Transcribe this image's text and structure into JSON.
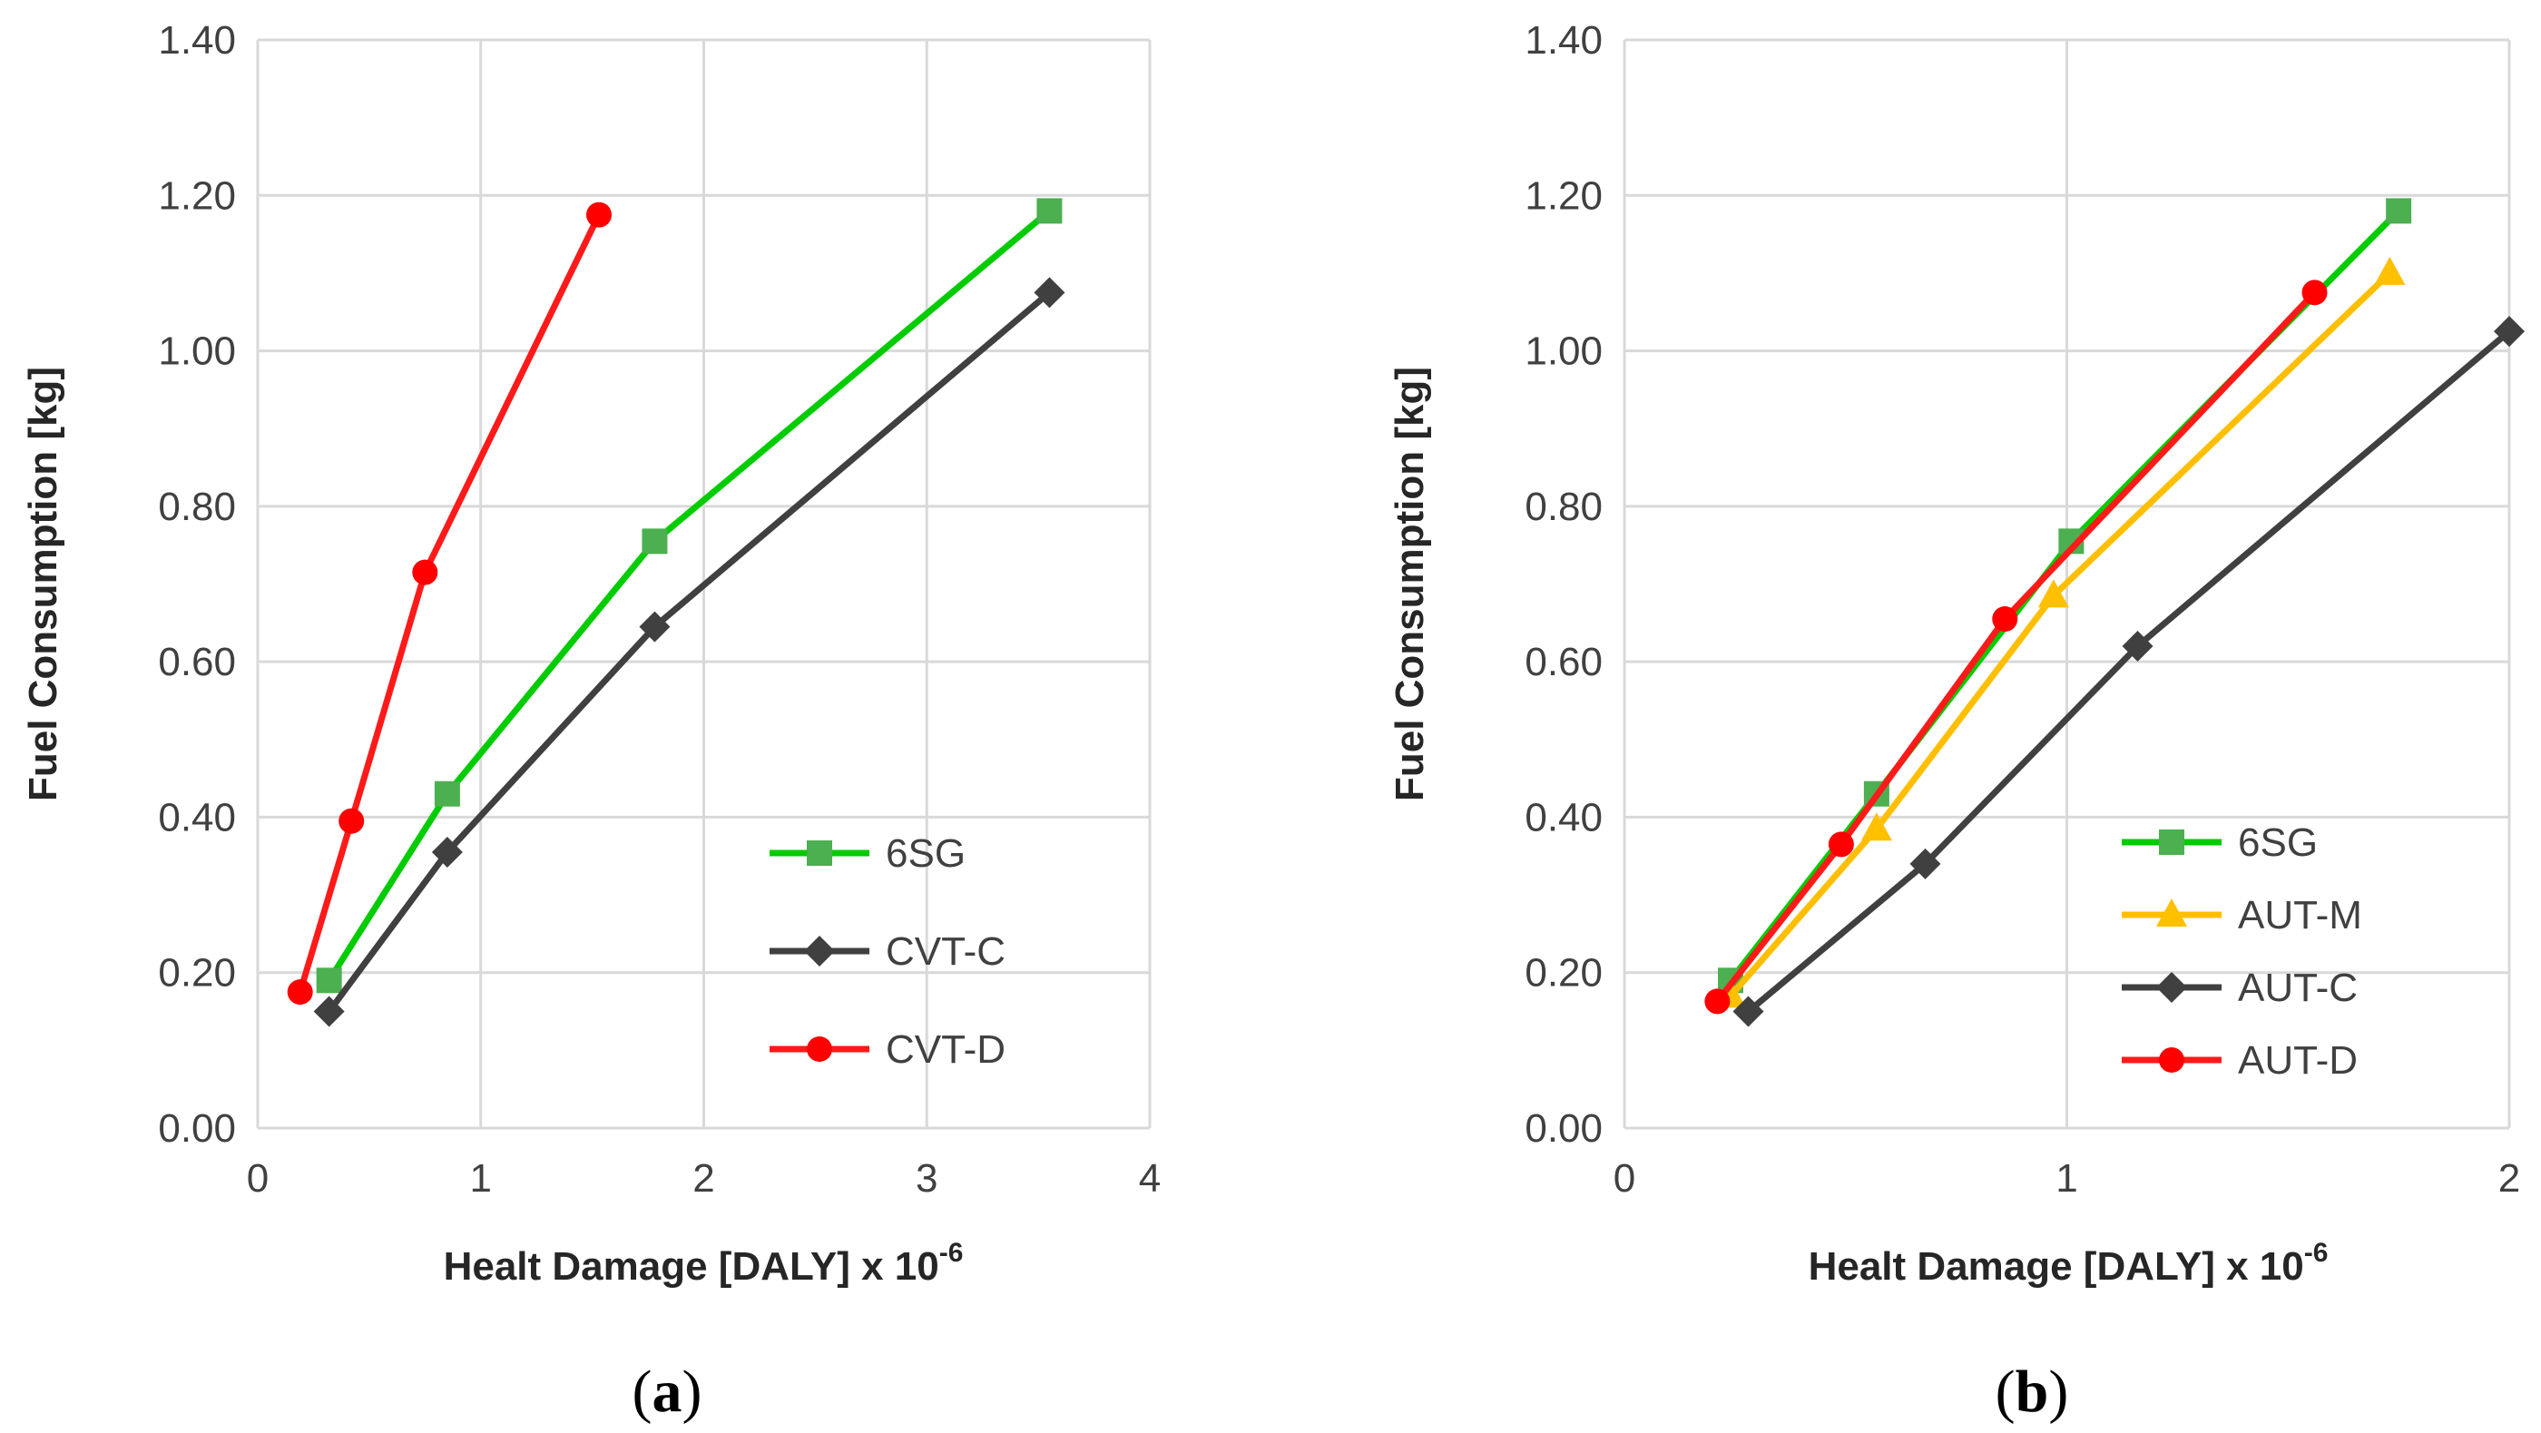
{
  "chart_data": [
    {
      "type": "line",
      "panel_label": "a",
      "xlabel": "Healt Damage [DALY] x 10",
      "xlabel_superscript": "-6",
      "ylabel": "Fuel Consumption [kg]",
      "xlim": [
        0,
        4
      ],
      "ylim": [
        0,
        1.4
      ],
      "x_ticks": [
        "0",
        "1",
        "2",
        "3",
        "4"
      ],
      "y_ticks": [
        "0.00",
        "0.20",
        "0.40",
        "0.60",
        "0.80",
        "1.00",
        "1.20",
        "1.40"
      ],
      "grid": true,
      "legend_position": "bottom-right",
      "series": [
        {
          "name": "6SG",
          "color": "#00cc00",
          "marker_color": "#4caf50",
          "marker": "square",
          "x": [
            0.32,
            0.85,
            1.78,
            3.55
          ],
          "y": [
            0.19,
            0.43,
            0.755,
            1.18
          ]
        },
        {
          "name": "CVT-C",
          "color": "#404040",
          "marker_color": "#404040",
          "marker": "diamond",
          "x": [
            0.32,
            0.85,
            1.78,
            3.55
          ],
          "y": [
            0.15,
            0.355,
            0.645,
            1.075
          ]
        },
        {
          "name": "CVT-D",
          "color": "#ff1a1a",
          "marker_color": "#ff0000",
          "marker": "circle",
          "x": [
            0.19,
            0.42,
            0.75,
            1.53
          ],
          "y": [
            0.175,
            0.395,
            0.715,
            1.175
          ]
        }
      ]
    },
    {
      "type": "line",
      "panel_label": "b",
      "xlabel": "Healt Damage [DALY] x 10",
      "xlabel_superscript": "-6",
      "ylabel": "Fuel Consumption [kg]",
      "xlim": [
        0,
        2
      ],
      "ylim": [
        0,
        1.4
      ],
      "x_ticks": [
        "0",
        "1",
        "2"
      ],
      "y_ticks": [
        "0.00",
        "0.20",
        "0.40",
        "0.60",
        "0.80",
        "1.00",
        "1.20",
        "1.40"
      ],
      "grid": true,
      "legend_position": "bottom-right",
      "series": [
        {
          "name": "6SG",
          "color": "#00cc00",
          "marker_color": "#4caf50",
          "marker": "square",
          "x": [
            0.24,
            0.57,
            1.01,
            1.75
          ],
          "y": [
            0.19,
            0.43,
            0.755,
            1.18
          ]
        },
        {
          "name": "AUT-M",
          "color": "#ffbf00",
          "marker_color": "#ffc000",
          "marker": "triangle",
          "x": [
            0.24,
            0.57,
            0.97,
            1.73
          ],
          "y": [
            0.17,
            0.385,
            0.685,
            1.1
          ]
        },
        {
          "name": "AUT-C",
          "color": "#404040",
          "marker_color": "#404040",
          "marker": "diamond",
          "x": [
            0.28,
            0.68,
            1.16,
            2.0
          ],
          "y": [
            0.15,
            0.34,
            0.62,
            1.025
          ]
        },
        {
          "name": "AUT-D",
          "color": "#ff1a1a",
          "marker_color": "#ff0000",
          "marker": "circle",
          "x": [
            0.21,
            0.49,
            0.86,
            1.56
          ],
          "y": [
            0.163,
            0.365,
            0.655,
            1.075
          ]
        }
      ]
    }
  ]
}
